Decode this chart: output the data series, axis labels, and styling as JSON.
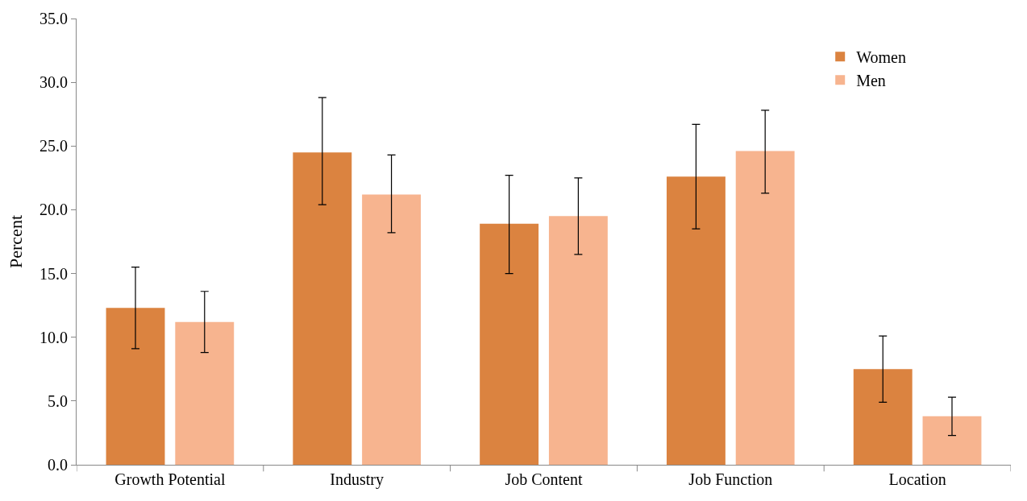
{
  "chart_data": {
    "type": "bar",
    "ylabel": "Percent",
    "categories": [
      "Growth Potential",
      "Industry",
      "Job Content",
      "Job Function",
      "Location"
    ],
    "series": [
      {
        "name": "Women",
        "color": "#db8340",
        "values": [
          12.3,
          24.5,
          18.9,
          22.6,
          7.5
        ],
        "errors": [
          [
            9.1,
            15.5
          ],
          [
            20.4,
            28.8
          ],
          [
            15.0,
            22.7
          ],
          [
            18.5,
            26.7
          ],
          [
            4.9,
            10.1
          ]
        ]
      },
      {
        "name": "Men",
        "color": "#f7b48f",
        "values": [
          11.2,
          21.2,
          19.5,
          24.6,
          3.8
        ],
        "errors": [
          [
            8.8,
            13.6
          ],
          [
            18.2,
            24.3
          ],
          [
            16.5,
            22.5
          ],
          [
            21.3,
            27.8
          ],
          [
            2.3,
            5.3
          ]
        ]
      }
    ],
    "ylim": [
      0,
      35
    ],
    "yticks": [
      {
        "value": 0,
        "label": "0.0"
      },
      {
        "value": 5,
        "label": "5.0"
      },
      {
        "value": 10,
        "label": "10.0"
      },
      {
        "value": 15,
        "label": "15.0"
      },
      {
        "value": 20,
        "label": "20.0"
      },
      {
        "value": 25,
        "label": "25.0"
      },
      {
        "value": 30,
        "label": "30.0"
      },
      {
        "value": 35,
        "label": "35.0"
      }
    ],
    "legend": "top right"
  }
}
